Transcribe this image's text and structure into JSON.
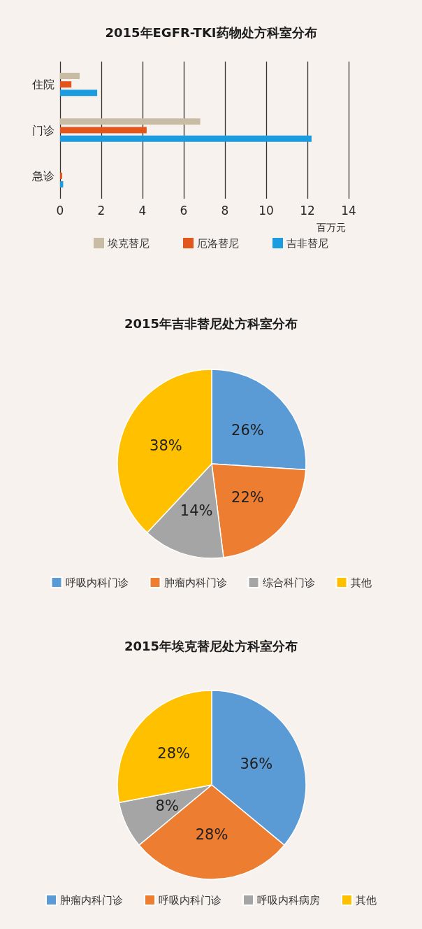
{
  "chart_data": [
    {
      "type": "bar",
      "title": "2015年EGFR-TKI药物处方科室分布",
      "orientation": "horizontal",
      "categories": [
        "住院",
        "门诊",
        "急诊"
      ],
      "series": [
        {
          "name": "埃克替尼",
          "color": "#c8bca4",
          "values": [
            0.95,
            6.8,
            0
          ]
        },
        {
          "name": "厄洛替尼",
          "color": "#e2561e",
          "values": [
            0.55,
            4.2,
            0.1
          ]
        },
        {
          "name": "吉非替尼",
          "color": "#1b9be0",
          "values": [
            1.8,
            12.2,
            0.15
          ]
        }
      ],
      "xlim": [
        0,
        14
      ],
      "xticks": [
        0,
        2,
        4,
        6,
        8,
        10,
        12,
        14
      ],
      "xlabel": "百万元",
      "grid": "x",
      "legend": "bottom"
    },
    {
      "type": "pie",
      "title": "2015年吉非替尼处方科室分布",
      "categories": [
        "呼吸内科门诊",
        "肿瘤内科门诊",
        "综合科门诊",
        "其他"
      ],
      "values": [
        26,
        22,
        14,
        38
      ],
      "colors": [
        "#5b9bd5",
        "#ed7d31",
        "#a5a5a5",
        "#ffc000"
      ],
      "value_labels": [
        "26%",
        "22%",
        "14%",
        "38%"
      ],
      "legend": "bottom"
    },
    {
      "type": "pie",
      "title": "2015年埃克替尼处方科室分布",
      "categories": [
        "肿瘤内科门诊",
        "呼吸内科门诊",
        "呼吸内科病房",
        "其他"
      ],
      "values": [
        36,
        28,
        8,
        28
      ],
      "colors": [
        "#5b9bd5",
        "#ed7d31",
        "#a5a5a5",
        "#ffc000"
      ],
      "value_labels": [
        "36%",
        "28%",
        "8%",
        "28%"
      ],
      "legend": "bottom"
    }
  ]
}
